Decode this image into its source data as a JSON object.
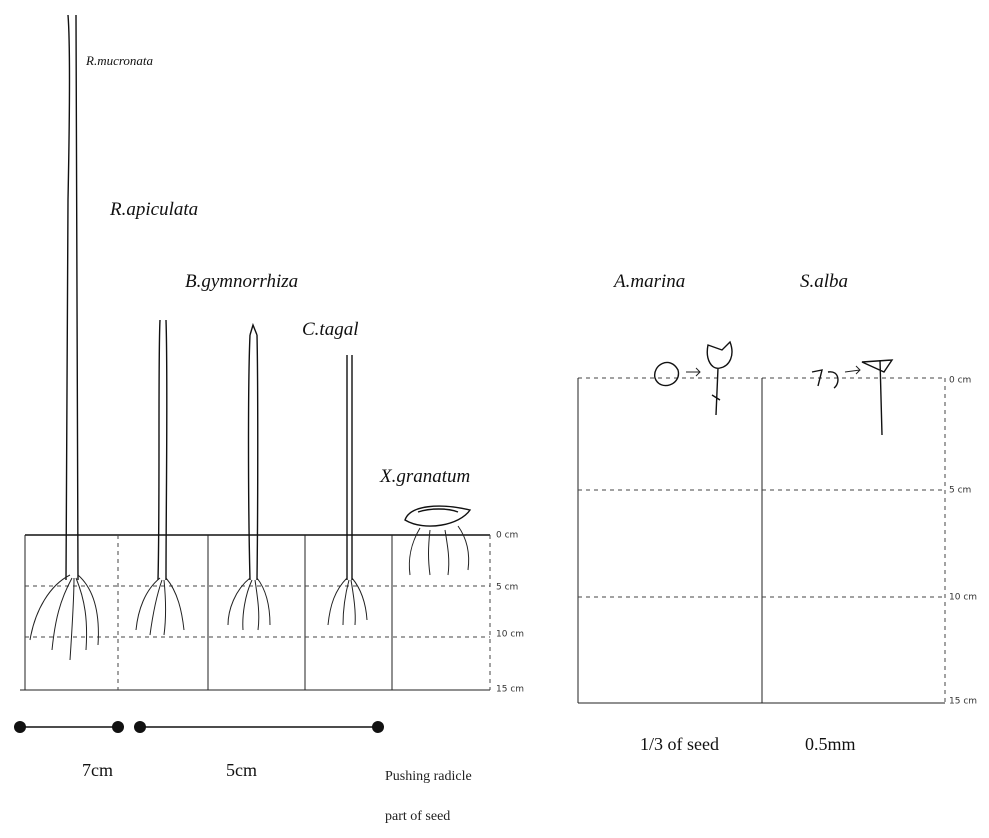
{
  "species": [
    "R.mucronata",
    "R.apiculata",
    "B.gymnorrhiza",
    "C.tagal",
    "X.granatum",
    "A.marina",
    "S.alba"
  ],
  "left_depths": [
    "0 cm",
    "5 cm",
    "10 cm",
    "15 cm"
  ],
  "right_depths": [
    "0 cm",
    "5 cm",
    "10 cm",
    "15 cm"
  ],
  "scale_bars": [
    "7cm",
    "5cm"
  ],
  "notes": {
    "pushing": [
      "Pushing radicle",
      "part of seed"
    ],
    "amarina": "1/3 of seed",
    "salba": "0.5mm"
  }
}
